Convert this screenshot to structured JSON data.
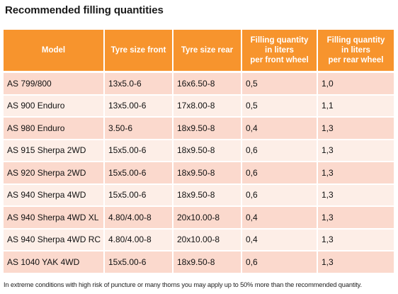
{
  "title": "Recommended filling quantities",
  "table": {
    "headers": [
      "Model",
      "Tyre size front",
      "Tyre size rear",
      "Filling quantity\nin liters\nper front wheel",
      "Filling quantity\nin liters\nper rear wheel"
    ],
    "rows": [
      [
        "AS 799/800",
        "13x5.0-6",
        "16x6.50-8",
        "0,5",
        "1,0"
      ],
      [
        "AS 900 Enduro",
        "13x5.00-6",
        "17x8.00-8",
        "0,5",
        "1,1"
      ],
      [
        "AS 980 Enduro",
        "3.50-6",
        "18x9.50-8",
        "0,4",
        "1,3"
      ],
      [
        "AS 915 Sherpa 2WD",
        "15x5.00-6",
        "18x9.50-8",
        "0,6",
        "1,3"
      ],
      [
        "AS 920 Sherpa 2WD",
        "15x5.00-6",
        "18x9.50-8",
        "0,6",
        "1,3"
      ],
      [
        "AS 940 Sherpa 4WD",
        "15x5.00-6",
        "18x9.50-8",
        "0,6",
        "1,3"
      ],
      [
        "AS 940 Sherpa 4WD XL",
        "4.80/4.00-8",
        "20x10.00-8",
        "0,4",
        "1,3"
      ],
      [
        "AS 940 Sherpa 4WD RC",
        "4.80/4.00-8",
        "20x10.00-8",
        "0,4",
        "1,3"
      ],
      [
        "AS 1040 YAK 4WD",
        "15x5.00-6",
        "18x9.50-8",
        "0,6",
        "1,3"
      ]
    ]
  },
  "footnote": "In extreme conditions with high risk of puncture or many thorns you may apply up to 50% more than the recommended quantity.",
  "colors": {
    "header_bg": "#f7942d",
    "row_dark": "#fbd9cd",
    "row_light": "#fdeee7"
  }
}
